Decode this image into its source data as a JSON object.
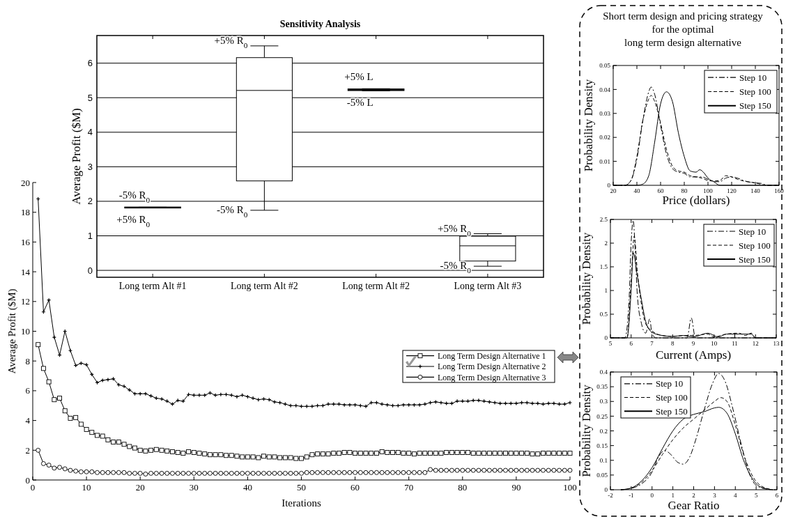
{
  "chart_data": [
    {
      "type": "line",
      "xlabel": "Iterations",
      "ylabel": "Average Profit ($M)",
      "x": [
        1,
        2,
        3,
        4,
        5,
        6,
        7,
        8,
        9,
        10,
        11,
        12,
        13,
        14,
        15,
        16,
        17,
        18,
        19,
        20,
        21,
        22,
        23,
        24,
        25,
        26,
        27,
        28,
        29,
        30,
        31,
        32,
        33,
        34,
        35,
        36,
        37,
        38,
        39,
        40,
        41,
        42,
        43,
        44,
        45,
        46,
        47,
        48,
        49,
        50,
        51,
        52,
        53,
        54,
        55,
        56,
        57,
        58,
        59,
        60,
        61,
        62,
        63,
        64,
        65,
        66,
        67,
        68,
        69,
        70,
        71,
        72,
        73,
        74,
        75,
        76,
        77,
        78,
        79,
        80,
        81,
        82,
        83,
        84,
        85,
        86,
        87,
        88,
        89,
        90,
        91,
        92,
        93,
        94,
        95,
        96,
        97,
        98,
        99,
        100
      ],
      "xlim": [
        0,
        100
      ],
      "xticks": [
        0,
        10,
        20,
        30,
        40,
        50,
        60,
        70,
        80,
        90,
        100
      ],
      "ylim": [
        0,
        20
      ],
      "yticks": [
        0,
        2,
        4,
        6,
        8,
        10,
        12,
        14,
        16,
        18,
        20
      ],
      "legend": "right",
      "series": [
        {
          "name": "Long Term Design Alternative 1",
          "color": "#000000",
          "marker": "square",
          "values": [
            9.1,
            7.5,
            6.6,
            5.4,
            5.5,
            4.65,
            4.15,
            4.2,
            3.75,
            3.4,
            3.2,
            3.0,
            2.95,
            2.7,
            2.55,
            2.55,
            2.4,
            2.25,
            2.15,
            2.0,
            1.95,
            2.0,
            2.05,
            2.0,
            1.95,
            1.9,
            1.85,
            1.8,
            1.9,
            1.85,
            1.8,
            1.75,
            1.7,
            1.7,
            1.7,
            1.65,
            1.65,
            1.6,
            1.55,
            1.55,
            1.55,
            1.5,
            1.6,
            1.55,
            1.55,
            1.5,
            1.5,
            1.5,
            1.45,
            1.45,
            1.55,
            1.7,
            1.75,
            1.75,
            1.75,
            1.8,
            1.8,
            1.85,
            1.85,
            1.8,
            1.8,
            1.8,
            1.8,
            1.8,
            1.9,
            1.85,
            1.85,
            1.85,
            1.8,
            1.8,
            1.75,
            1.8,
            1.8,
            1.8,
            1.8,
            1.8,
            1.85,
            1.85,
            1.85,
            1.85,
            1.85,
            1.8,
            1.8,
            1.8,
            1.8,
            1.8,
            1.8,
            1.8,
            1.8,
            1.8,
            1.8,
            1.8,
            1.75,
            1.75,
            1.8,
            1.8,
            1.8,
            1.8,
            1.8,
            1.8
          ]
        },
        {
          "name": "Long Term Design Alternative 2",
          "color": "#000000",
          "marker": "cross",
          "values": [
            18.9,
            11.3,
            12.1,
            9.6,
            8.4,
            10.0,
            8.7,
            7.7,
            7.85,
            7.75,
            7.1,
            6.55,
            6.7,
            6.75,
            6.8,
            6.4,
            6.3,
            6.05,
            5.8,
            5.8,
            5.8,
            5.65,
            5.5,
            5.45,
            5.3,
            5.1,
            5.35,
            5.3,
            5.75,
            5.7,
            5.7,
            5.7,
            5.85,
            5.7,
            5.75,
            5.75,
            5.7,
            5.6,
            5.7,
            5.6,
            5.5,
            5.4,
            5.45,
            5.4,
            5.25,
            5.2,
            5.1,
            5.0,
            5.0,
            4.95,
            4.95,
            4.95,
            5.0,
            5.0,
            5.1,
            5.1,
            5.1,
            5.05,
            5.05,
            5.05,
            5.0,
            4.95,
            5.2,
            5.2,
            5.1,
            5.05,
            5.0,
            5.0,
            5.05,
            5.05,
            5.05,
            5.05,
            5.1,
            5.2,
            5.25,
            5.2,
            5.15,
            5.15,
            5.3,
            5.3,
            5.3,
            5.35,
            5.35,
            5.3,
            5.25,
            5.2,
            5.15,
            5.15,
            5.15,
            5.15,
            5.2,
            5.2,
            5.15,
            5.15,
            5.1,
            5.15,
            5.15,
            5.1,
            5.1,
            5.2
          ]
        },
        {
          "name": "Long Term Design Alternative 3",
          "color": "#000000",
          "marker": "circle",
          "values": [
            2.0,
            1.1,
            1.0,
            0.8,
            0.85,
            0.75,
            0.65,
            0.6,
            0.55,
            0.55,
            0.55,
            0.5,
            0.5,
            0.5,
            0.5,
            0.5,
            0.5,
            0.45,
            0.45,
            0.45,
            0.4,
            0.45,
            0.45,
            0.45,
            0.45,
            0.45,
            0.45,
            0.45,
            0.45,
            0.45,
            0.45,
            0.45,
            0.45,
            0.45,
            0.45,
            0.45,
            0.45,
            0.45,
            0.45,
            0.45,
            0.45,
            0.45,
            0.45,
            0.45,
            0.45,
            0.45,
            0.45,
            0.45,
            0.45,
            0.45,
            0.5,
            0.5,
            0.5,
            0.5,
            0.5,
            0.5,
            0.5,
            0.5,
            0.5,
            0.5,
            0.5,
            0.5,
            0.5,
            0.5,
            0.5,
            0.5,
            0.5,
            0.5,
            0.5,
            0.5,
            0.5,
            0.5,
            0.5,
            0.7,
            0.65,
            0.65,
            0.65,
            0.65,
            0.65,
            0.65,
            0.65,
            0.65,
            0.65,
            0.65,
            0.65,
            0.65,
            0.65,
            0.65,
            0.65,
            0.65,
            0.65,
            0.65,
            0.65,
            0.65,
            0.65,
            0.65,
            0.65,
            0.65,
            0.65,
            0.65
          ]
        }
      ]
    },
    {
      "type": "box",
      "title": "Sensitivity Analysis",
      "ylabel": "Average Profit ($M)",
      "categories": [
        "Long term Alt #1",
        "Long term Alt #2",
        "Long term Alt #2",
        "Long term Alt #3"
      ],
      "ylim": [
        -0.2,
        6.8
      ],
      "yticks": [
        0,
        1,
        2,
        3,
        4,
        5,
        6
      ],
      "grid": "y",
      "boxes": [
        {
          "low": 1.81,
          "q1": 1.81,
          "median": 1.82,
          "q3": 1.83,
          "high": 1.83
        },
        {
          "low": 1.74,
          "q1": 2.59,
          "median": 5.21,
          "q3": 6.16,
          "high": 6.5
        },
        {
          "low": 5.2,
          "q1": 5.21,
          "median": 5.23,
          "q3": 5.25,
          "high": 5.26
        },
        {
          "low": 0.12,
          "q1": 0.27,
          "median": 0.71,
          "q3": 0.99,
          "high": 1.06
        }
      ],
      "annotations": [
        {
          "text": "-5% R$_{0}$",
          "x": "Long term Alt #1",
          "y": 1.83
        },
        {
          "text": "+5% R$_{0}$",
          "x": "Long term Alt #1",
          "y": 1.81
        },
        {
          "text": "+5% R$_{0}$",
          "x": "Long term Alt #2",
          "y": 6.5
        },
        {
          "text": "-5% R$_{0}$",
          "x": "Long term Alt #2",
          "y": 1.74
        },
        {
          "text": "+5% L",
          "y": 5.26
        },
        {
          "text": "-5% L",
          "y": 5.2
        },
        {
          "text": "+5% R$_{0}$",
          "x": "Long term Alt #3",
          "y": 1.06
        },
        {
          "text": "-5% R$_{0}$",
          "x": "Long term Alt #3",
          "y": 0.12
        }
      ]
    },
    {
      "type": "line",
      "title": "Short term design and pricing strategy\nfor the optimal\nlong term design alternative",
      "xlabel": "Price (dollars)",
      "ylabel": "Probability Density",
      "xlim": [
        20,
        160
      ],
      "xticks": [
        20,
        40,
        60,
        80,
        100,
        120,
        140,
        160
      ],
      "ylim": [
        0,
        0.05
      ],
      "yticks": [
        0,
        0.01,
        0.02,
        0.03,
        0.04,
        0.05
      ],
      "legend": "top right",
      "series": [
        {
          "name": "Step 10",
          "color": "#000000",
          "line_style": "dashdot",
          "x": [
            20,
            30,
            35,
            40,
            45,
            50,
            52,
            55,
            60,
            65,
            70,
            75,
            80,
            85,
            90,
            95,
            100,
            105,
            110,
            115,
            120,
            125,
            130,
            140,
            145,
            150,
            160
          ],
          "values": [
            0,
            0,
            0.002,
            0.011,
            0.027,
            0.039,
            0.041,
            0.038,
            0.025,
            0.013,
            0.007,
            0.0055,
            0.005,
            0.0035,
            0.0035,
            0.0035,
            0.0025,
            0.0015,
            0.0015,
            0.003,
            0.0035,
            0.003,
            0.002,
            0.001,
            0.0008,
            0,
            0
          ]
        },
        {
          "name": "Step 100",
          "color": "#000000",
          "line_style": "dashed",
          "x": [
            20,
            30,
            35,
            40,
            45,
            50,
            52,
            55,
            60,
            65,
            70,
            75,
            80,
            85,
            90,
            95,
            100,
            105,
            110,
            115,
            120,
            125,
            130,
            140,
            150,
            160
          ],
          "values": [
            0,
            0,
            0.002,
            0.012,
            0.027,
            0.036,
            0.0375,
            0.035,
            0.026,
            0.015,
            0.008,
            0.006,
            0.0055,
            0.004,
            0.0035,
            0.003,
            0.002,
            0.0018,
            0.002,
            0.004,
            0.0035,
            0.0025,
            0.0018,
            0.001,
            0,
            0
          ]
        },
        {
          "name": "Step 150",
          "color": "#000000",
          "line_style": "solid",
          "x": [
            20,
            40,
            45,
            50,
            55,
            60,
            65,
            70,
            75,
            80,
            85,
            90,
            93,
            97,
            100,
            105,
            110,
            160
          ],
          "values": [
            0,
            0,
            0.0005,
            0.004,
            0.018,
            0.034,
            0.039,
            0.035,
            0.022,
            0.012,
            0.006,
            0.0055,
            0.0065,
            0.005,
            0.003,
            0.0015,
            0,
            0
          ]
        }
      ]
    },
    {
      "type": "line",
      "xlabel": "Current (Amps)",
      "ylabel": "Probability Density",
      "xlim": [
        5,
        13
      ],
      "xticks": [
        5,
        6,
        7,
        8,
        9,
        10,
        11,
        12,
        13
      ],
      "ylim": [
        0,
        2.5
      ],
      "yticks": [
        0,
        0.5,
        1,
        1.5,
        2,
        2.5
      ],
      "legend": "top right",
      "series": [
        {
          "name": "Step 10",
          "color": "#000000",
          "line_style": "dashdot",
          "x": [
            5,
            5.7,
            5.9,
            6.0,
            6.1,
            6.2,
            6.3,
            6.5,
            6.7,
            6.9,
            7.0,
            7.2,
            8.7,
            8.9,
            9.1,
            12,
            13
          ],
          "values": [
            0,
            0,
            0.8,
            2.0,
            2.48,
            1.8,
            0.9,
            0.3,
            0.1,
            0.4,
            0.1,
            0,
            0,
            0.42,
            0,
            0,
            0
          ]
        },
        {
          "name": "Step 100",
          "color": "#000000",
          "line_style": "dashed",
          "x": [
            5,
            5.8,
            6.0,
            6.15,
            6.3,
            6.5,
            6.7,
            7.0,
            7.5,
            8,
            8.5,
            9,
            9.7,
            10,
            10.6,
            11.2,
            11.5,
            11.8,
            12,
            13
          ],
          "values": [
            0,
            0,
            1.2,
            2.15,
            1.4,
            0.7,
            0.3,
            0.15,
            0.05,
            0.03,
            0.05,
            0.05,
            0.08,
            0.02,
            0.08,
            0.1,
            0.05,
            0.1,
            0,
            0
          ]
        },
        {
          "name": "Step 150",
          "color": "#000000",
          "line_style": "solid",
          "x": [
            5,
            5.8,
            6.0,
            6.1,
            6.3,
            6.5,
            6.7,
            7,
            7.5,
            8,
            8.5,
            9,
            9.7,
            10.2,
            10.6,
            11.2,
            11.8,
            12,
            13
          ],
          "values": [
            0,
            0,
            1.0,
            1.8,
            1.3,
            0.8,
            0.35,
            0.12,
            0.05,
            0.03,
            0.05,
            0.02,
            0.1,
            0.02,
            0.08,
            0.08,
            0.08,
            0,
            0
          ]
        }
      ]
    },
    {
      "type": "line",
      "xlabel": "Gear Ratio",
      "ylabel": "Probability Density",
      "xlim": [
        -2,
        6
      ],
      "xticks": [
        -2,
        -1,
        0,
        1,
        2,
        3,
        4,
        5,
        6
      ],
      "ylim": [
        0,
        0.4
      ],
      "yticks": [
        0,
        0.05,
        0.1,
        0.15,
        0.2,
        0.25,
        0.3,
        0.35,
        0.4
      ],
      "legend": "top left",
      "series": [
        {
          "name": "Step 10",
          "color": "#000000",
          "line_style": "dashdot",
          "x": [
            -1.5,
            -1,
            -0.5,
            0,
            0.3,
            0.6,
            0.9,
            1.2,
            1.5,
            1.8,
            2.1,
            2.5,
            2.9,
            3.2,
            3.5,
            3.9,
            4.3,
            4.7,
            5.0,
            5.5,
            5.8
          ],
          "values": [
            0,
            0.005,
            0.02,
            0.06,
            0.11,
            0.133,
            0.12,
            0.095,
            0.087,
            0.11,
            0.17,
            0.27,
            0.36,
            0.395,
            0.37,
            0.27,
            0.15,
            0.05,
            0.015,
            0.002,
            0
          ]
        },
        {
          "name": "Step 100",
          "color": "#000000",
          "line_style": "dashed",
          "x": [
            -1.5,
            -1,
            -0.5,
            0,
            0.5,
            1,
            1.5,
            2,
            2.5,
            3,
            3.3,
            3.6,
            4,
            4.4,
            4.8,
            5.2,
            5.8
          ],
          "values": [
            0,
            0.005,
            0.025,
            0.065,
            0.12,
            0.17,
            0.21,
            0.24,
            0.27,
            0.3,
            0.313,
            0.3,
            0.22,
            0.12,
            0.05,
            0.015,
            0
          ]
        },
        {
          "name": "Step 150",
          "color": "#000000",
          "line_style": "solid",
          "x": [
            -1.5,
            -1,
            -0.5,
            0,
            0.5,
            1,
            1.5,
            2,
            2.5,
            3,
            3.2,
            3.6,
            4,
            4.4,
            4.8,
            5.2,
            5.8
          ],
          "values": [
            0,
            0.006,
            0.03,
            0.075,
            0.14,
            0.2,
            0.24,
            0.256,
            0.265,
            0.278,
            0.28,
            0.26,
            0.19,
            0.1,
            0.04,
            0.01,
            0
          ]
        }
      ]
    }
  ]
}
